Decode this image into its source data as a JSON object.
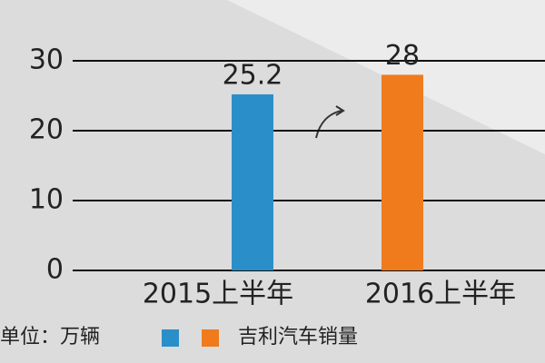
{
  "chart_data": {
    "type": "bar",
    "categories": [
      "2015上半年",
      "2016上半年"
    ],
    "values": [
      25.2,
      28
    ],
    "colors": [
      "#2a8fc9",
      "#f07b1c"
    ],
    "ylim": [
      0,
      30
    ],
    "yticks": [
      0,
      10,
      20,
      30
    ],
    "grid": true,
    "unit": "单位：万辆",
    "legend_label": "吉利汽车销量"
  }
}
